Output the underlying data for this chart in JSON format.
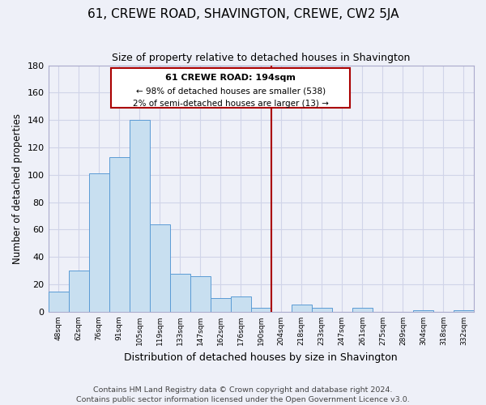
{
  "title": "61, CREWE ROAD, SHAVINGTON, CREWE, CW2 5JA",
  "subtitle": "Size of property relative to detached houses in Shavington",
  "xlabel": "Distribution of detached houses by size in Shavington",
  "ylabel": "Number of detached properties",
  "bar_labels": [
    "48sqm",
    "62sqm",
    "76sqm",
    "91sqm",
    "105sqm",
    "119sqm",
    "133sqm",
    "147sqm",
    "162sqm",
    "176sqm",
    "190sqm",
    "204sqm",
    "218sqm",
    "233sqm",
    "247sqm",
    "261sqm",
    "275sqm",
    "289sqm",
    "304sqm",
    "318sqm",
    "332sqm"
  ],
  "bar_values": [
    15,
    30,
    101,
    113,
    140,
    64,
    28,
    26,
    10,
    11,
    3,
    0,
    5,
    3,
    0,
    3,
    0,
    0,
    1,
    0,
    1
  ],
  "bar_color": "#c8dff0",
  "bar_edge_color": "#5b9bd5",
  "ylim": [
    0,
    180
  ],
  "yticks": [
    0,
    20,
    40,
    60,
    80,
    100,
    120,
    140,
    160,
    180
  ],
  "vline_x": 10.5,
  "vline_color": "#aa0000",
  "annotation_title": "61 CREWE ROAD: 194sqm",
  "annotation_line1": "← 98% of detached houses are smaller (538)",
  "annotation_line2": "2% of semi-detached houses are larger (13) →",
  "annotation_box_facecolor": "#ffffff",
  "annotation_box_edgecolor": "#aa0000",
  "footer1": "Contains HM Land Registry data © Crown copyright and database right 2024.",
  "footer2": "Contains public sector information licensed under the Open Government Licence v3.0.",
  "bg_color": "#eef0f8",
  "grid_color": "#d0d4e8"
}
